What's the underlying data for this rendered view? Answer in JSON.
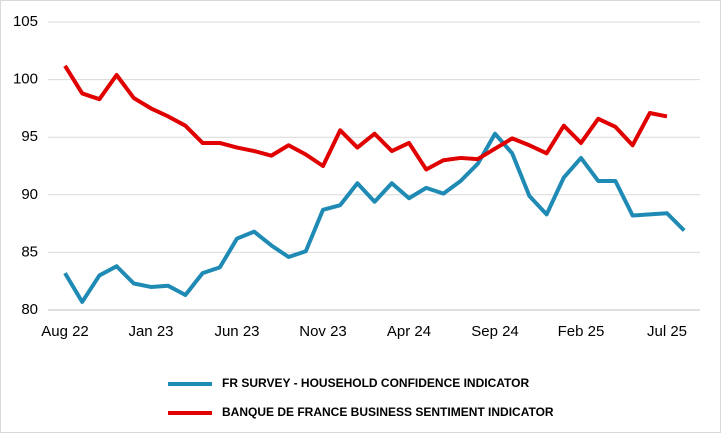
{
  "chart_data": {
    "type": "line",
    "categories": [
      "Aug 22",
      null,
      null,
      null,
      null,
      "Jan 23",
      null,
      null,
      null,
      null,
      "Jun 23",
      null,
      null,
      null,
      null,
      "Nov 23",
      null,
      null,
      null,
      null,
      "Apr 24",
      null,
      null,
      null,
      null,
      "Sep 24",
      null,
      null,
      null,
      null,
      "Feb 25",
      null,
      null,
      null,
      null,
      "Jul 25",
      null
    ],
    "series": [
      {
        "name": "FR SURVEY - HOUSEHOLD CONFIDENCE INDICATOR",
        "color": "#1f8bb5",
        "values": [
          83.2,
          80.7,
          83.0,
          83.8,
          82.3,
          82.0,
          82.1,
          81.3,
          83.2,
          83.7,
          86.2,
          86.8,
          85.6,
          84.6,
          85.1,
          88.7,
          89.1,
          91.0,
          89.4,
          91.0,
          89.7,
          90.6,
          90.1,
          91.2,
          92.7,
          95.3,
          93.6,
          89.9,
          88.3,
          91.5,
          93.2,
          91.2,
          91.2,
          88.2,
          88.3,
          88.4,
          86.9
        ]
      },
      {
        "name": "BANQUE DE FRANCE  BUSINESS SENTIMENT INDICATOR",
        "color": "#e00000",
        "values": [
          101.2,
          98.8,
          98.3,
          100.4,
          98.4,
          97.5,
          96.8,
          96.0,
          94.5,
          94.5,
          94.1,
          93.8,
          93.4,
          94.3,
          93.5,
          92.5,
          95.6,
          94.1,
          95.3,
          93.8,
          94.5,
          92.2,
          93.0,
          93.2,
          93.1,
          94.0,
          94.9,
          94.3,
          93.6,
          96.0,
          94.5,
          96.6,
          95.9,
          94.3,
          97.1,
          96.8,
          null
        ]
      }
    ],
    "ylim": [
      80,
      105
    ],
    "yticks": [
      80,
      85,
      90,
      95,
      100,
      105
    ],
    "grid": true
  }
}
